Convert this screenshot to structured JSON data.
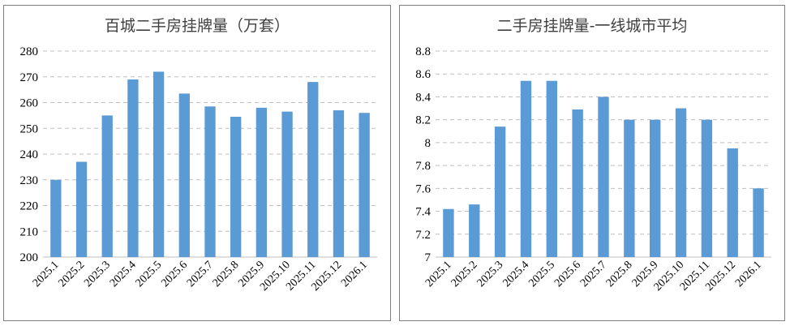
{
  "chart_data": [
    {
      "type": "bar",
      "title": "百城二手房挂牌量（万套）",
      "categories": [
        "2025.1",
        "2025.2",
        "2025.3",
        "2025.4",
        "2025.5",
        "2025.6",
        "2025.7",
        "2025.8",
        "2025.9",
        "2025.10",
        "2025.11",
        "2025.12",
        "2026.1"
      ],
      "values": [
        230,
        237,
        255,
        269,
        272,
        263.5,
        258.5,
        254.5,
        258,
        256.5,
        268,
        257,
        256
      ],
      "ylim": [
        200,
        280
      ],
      "yticks": [
        "200",
        "210",
        "220",
        "230",
        "240",
        "250",
        "260",
        "270",
        "280"
      ],
      "xlabel": "",
      "ylabel": "",
      "grid": true,
      "bar_color": "#5b9bd5"
    },
    {
      "type": "bar",
      "title": "二手房挂牌量-一线城市平均",
      "categories": [
        "2025.1",
        "2025.2",
        "2025.3",
        "2025.4",
        "2025.5",
        "2025.6",
        "2025.7",
        "2025.8",
        "2025.9",
        "2025.10",
        "2025.11",
        "2025.12",
        "2026.1"
      ],
      "values": [
        7.42,
        7.46,
        8.14,
        8.54,
        8.54,
        8.29,
        8.4,
        8.2,
        8.2,
        8.3,
        8.2,
        7.95,
        7.6
      ],
      "ylim": [
        7,
        8.8
      ],
      "yticks": [
        "7",
        "7.2",
        "7.4",
        "7.6",
        "7.8",
        "8",
        "8.2",
        "8.4",
        "8.6",
        "8.8"
      ],
      "xlabel": "",
      "ylabel": "",
      "grid": true,
      "bar_color": "#5b9bd5"
    }
  ]
}
